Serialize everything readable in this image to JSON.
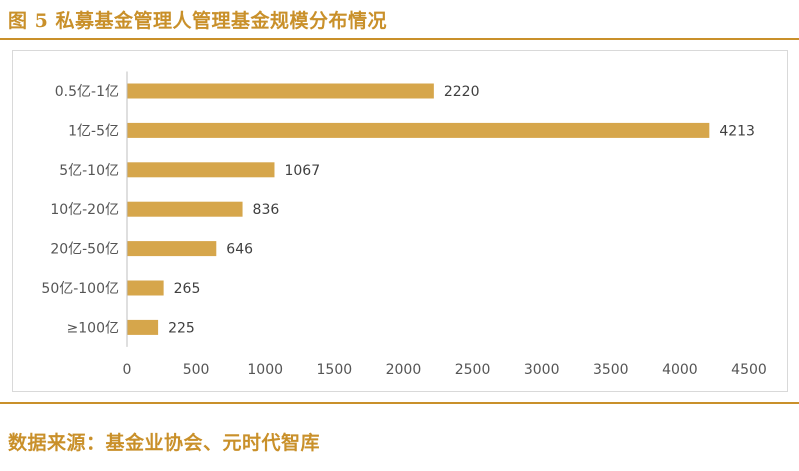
{
  "header": {
    "figure_title": "图 5 私募基金管理人管理基金规模分布情况"
  },
  "footer": {
    "source": "数据来源：基金业协会、元时代智库"
  },
  "colors": {
    "accent": "#c9902a",
    "bar": "#d6a64b",
    "axis": "#bfbfbf"
  },
  "chart_data": {
    "type": "bar",
    "orientation": "horizontal",
    "categories": [
      "0.5亿-1亿",
      "1亿-5亿",
      "5亿-10亿",
      "10亿-20亿",
      "20亿-50亿",
      "50亿-100亿",
      "≥100亿"
    ],
    "values": [
      2220,
      4213,
      1067,
      836,
      646,
      265,
      225
    ],
    "xlim": [
      0,
      4500
    ],
    "xticks": [
      "0",
      "500",
      "1000",
      "1500",
      "2000",
      "2500",
      "3000",
      "3500",
      "4000",
      "4500"
    ],
    "grid": false,
    "data_labels": true
  }
}
